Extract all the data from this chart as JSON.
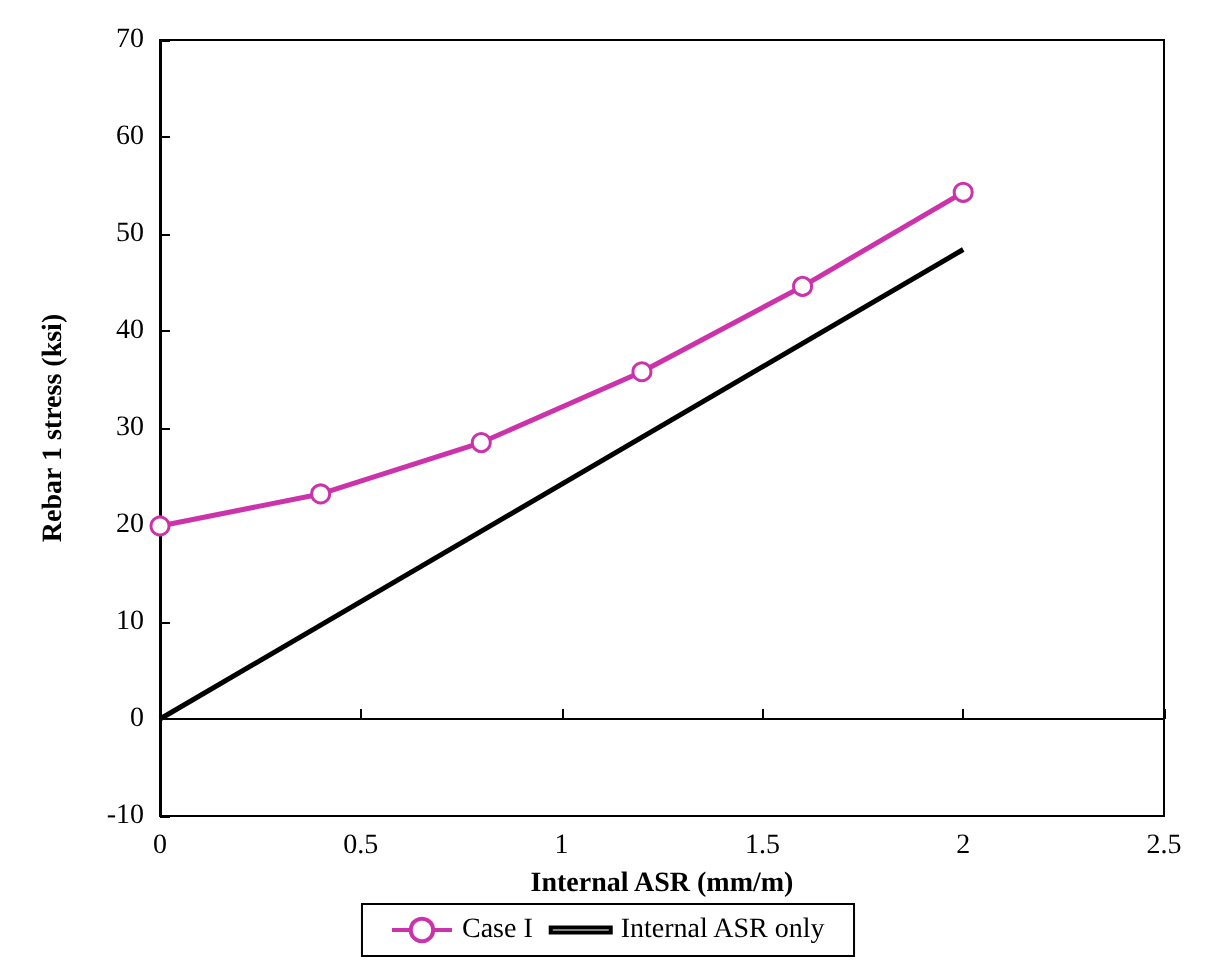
{
  "chart_data": {
    "type": "line",
    "xlabel": "Internal ASR (mm/m)",
    "ylabel": "Rebar 1 stress (ksi)",
    "xlim": [
      0,
      2.5
    ],
    "xticks": [
      0,
      0.5,
      1,
      1.5,
      2,
      2.5
    ],
    "ylim": [
      -10,
      70
    ],
    "yticks": [
      -10,
      0,
      10,
      20,
      30,
      40,
      50,
      60,
      70
    ],
    "legend": "bottom",
    "series": [
      {
        "name": "Case I",
        "color": "#cc33aa",
        "marker": "circle",
        "x": [
          0,
          0.4,
          0.8,
          1.2,
          1.6,
          2
        ],
        "values": [
          19.9,
          23.2,
          28.5,
          35.8,
          44.6,
          54.3
        ]
      },
      {
        "name": "Internal ASR only",
        "color": "#000000",
        "marker": "none",
        "x": [
          0,
          2
        ],
        "values": [
          0,
          48.4
        ]
      }
    ]
  }
}
